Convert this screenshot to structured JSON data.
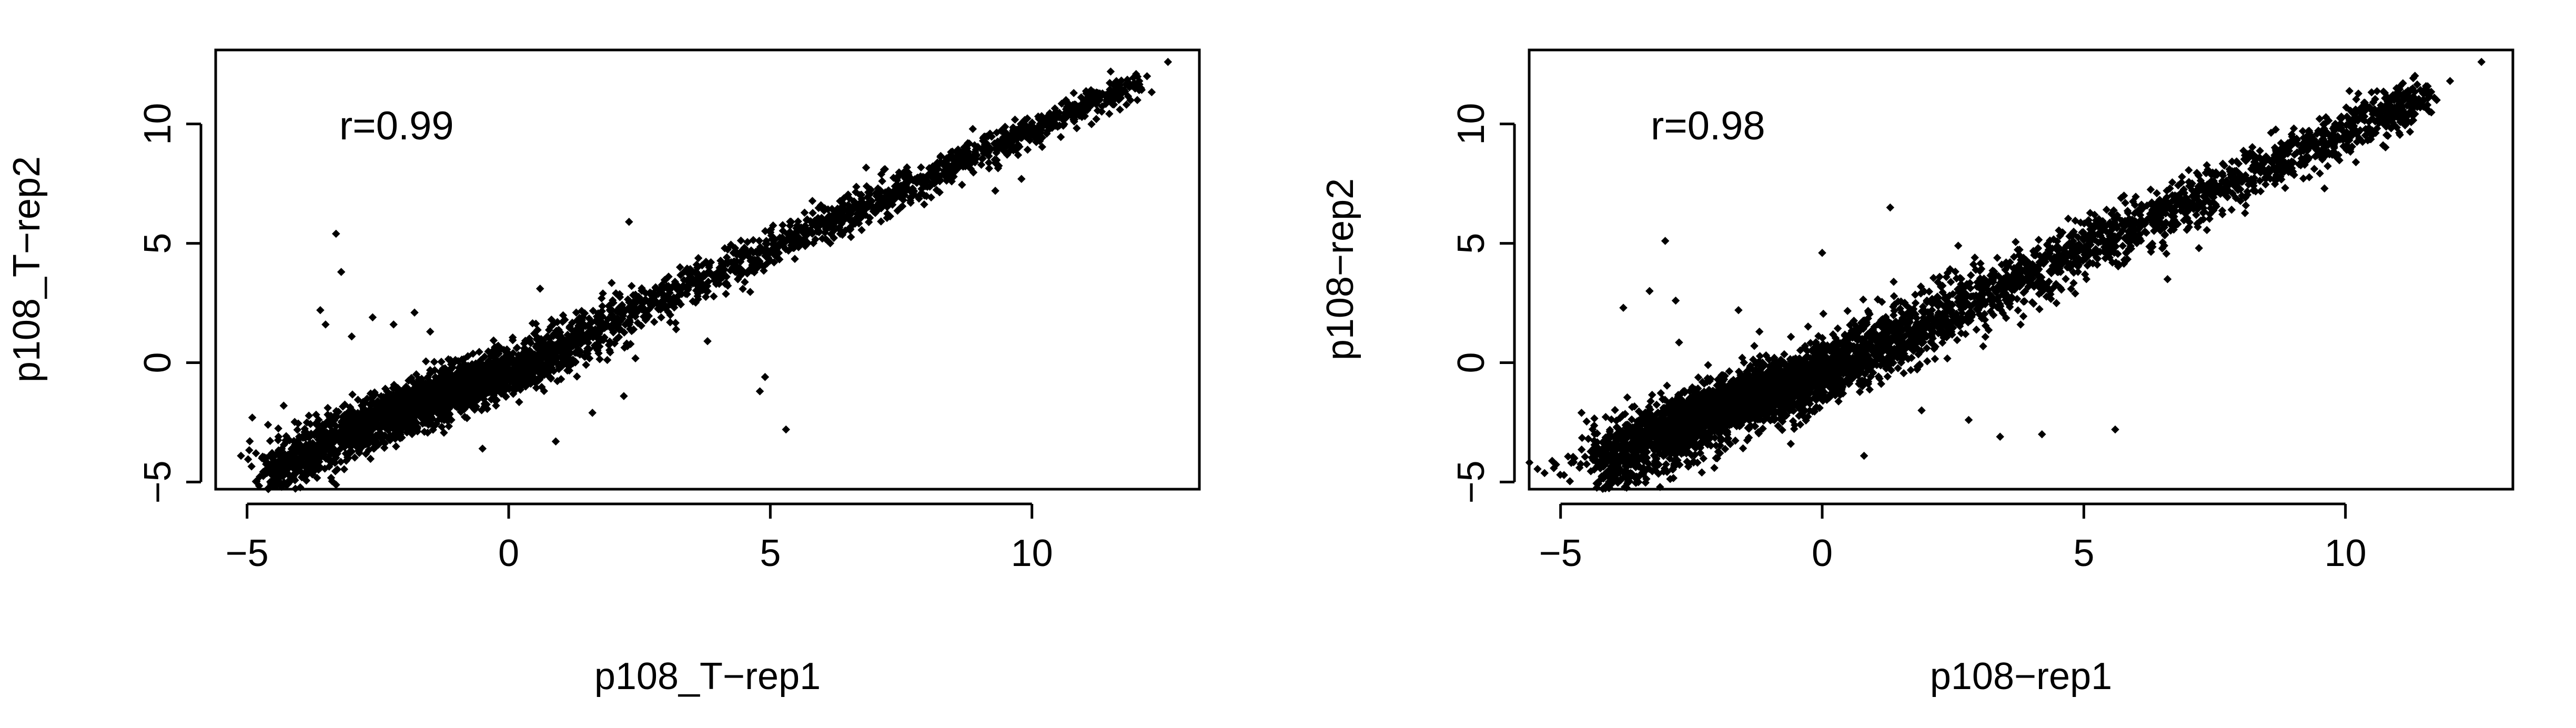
{
  "chart_data": [
    {
      "type": "scatter",
      "xlabel": "p108_T−rep1",
      "ylabel": "p108_T−rep2",
      "annotation": "r=0.99",
      "xlim": [
        -5.6,
        13.2
      ],
      "ylim": [
        -5.3,
        13.1
      ],
      "xticks": [
        -5,
        0,
        5,
        10
      ],
      "xtick_labels": [
        "−5",
        "0",
        "5",
        "10"
      ],
      "yticks": [
        -5,
        0,
        5,
        10
      ],
      "ytick_labels": [
        "−5",
        "0",
        "5",
        "10"
      ],
      "grid": false,
      "legend": "none",
      "point_color": "#000000",
      "points": [
        [
          -3.6,
          2.2
        ],
        [
          -3.3,
          5.4
        ],
        [
          -3.2,
          3.8
        ],
        [
          -3.5,
          1.6
        ],
        [
          -3.0,
          1.1
        ],
        [
          -2.6,
          1.9
        ],
        [
          -2.2,
          1.6
        ],
        [
          -1.8,
          2.1
        ],
        [
          -1.5,
          1.3
        ],
        [
          -4.3,
          -1.8
        ],
        [
          -4.6,
          -2.6
        ],
        [
          -4.4,
          -3.1
        ],
        [
          -4.9,
          -2.3
        ],
        [
          -4.2,
          -4.4
        ],
        [
          -3.8,
          -3.6
        ],
        [
          2.3,
          5.9
        ],
        [
          1.8,
          2.9
        ],
        [
          0.6,
          3.1
        ],
        [
          4.9,
          -0.6
        ],
        [
          4.8,
          -1.2
        ],
        [
          5.3,
          -2.8
        ],
        [
          9.3,
          7.2
        ],
        [
          9.8,
          7.7
        ],
        [
          10.8,
          10.2
        ],
        [
          11.5,
          11.0
        ],
        [
          12.2,
          12.0
        ],
        [
          12.6,
          12.6
        ],
        [
          2.2,
          -1.4
        ],
        [
          1.6,
          -2.1
        ],
        [
          0.9,
          -3.3
        ],
        [
          -0.5,
          -3.6
        ],
        [
          3.2,
          1.4
        ],
        [
          3.8,
          0.9
        ]
      ],
      "trend": {
        "slope": 0.99,
        "intercept": -0.15,
        "x_range": [
          -4.6,
          12.0
        ],
        "spread": 0.55,
        "n": 2400
      },
      "cluster": {
        "x_center": -1.2,
        "y_center": -1.3,
        "x_sd": 1.3,
        "y_sd": 1.1,
        "n": 1400
      }
    },
    {
      "type": "scatter",
      "xlabel": "p108−rep1",
      "ylabel": "p108−rep2",
      "annotation": "r=0.98",
      "xlim": [
        -5.6,
        13.2
      ],
      "ylim": [
        -5.3,
        13.1
      ],
      "xticks": [
        -5,
        0,
        5,
        10
      ],
      "xtick_labels": [
        "−5",
        "0",
        "5",
        "10"
      ],
      "yticks": [
        -5,
        0,
        5,
        10
      ],
      "ytick_labels": [
        "−5",
        "0",
        "5",
        "10"
      ],
      "grid": false,
      "legend": "none",
      "point_color": "#000000",
      "points": [
        [
          -3.0,
          5.1
        ],
        [
          -3.8,
          2.3
        ],
        [
          -4.6,
          -2.1
        ],
        [
          -4.2,
          -3.6
        ],
        [
          -3.9,
          -4.2
        ],
        [
          -3.3,
          3.0
        ],
        [
          -2.8,
          2.6
        ],
        [
          -1.6,
          2.2
        ],
        [
          -1.2,
          1.3
        ],
        [
          0.0,
          4.6
        ],
        [
          1.3,
          6.5
        ],
        [
          2.6,
          4.9
        ],
        [
          3.4,
          -3.1
        ],
        [
          4.2,
          -3.0
        ],
        [
          5.6,
          -2.8
        ],
        [
          2.8,
          -2.4
        ],
        [
          1.9,
          -2.0
        ],
        [
          11.2,
          10.1
        ],
        [
          12.0,
          11.8
        ],
        [
          12.6,
          12.6
        ],
        [
          11.7,
          11.1
        ],
        [
          10.2,
          8.4
        ],
        [
          9.6,
          7.3
        ],
        [
          6.6,
          3.5
        ],
        [
          7.2,
          4.8
        ],
        [
          -2.3,
          -4.6
        ],
        [
          0.8,
          -3.9
        ],
        [
          -0.6,
          -3.4
        ]
      ],
      "trend": {
        "slope": 0.99,
        "intercept": -0.2,
        "x_range": [
          -4.2,
          11.6
        ],
        "spread": 0.85,
        "n": 3000
      },
      "cluster": {
        "x_center": -1.3,
        "y_center": -1.4,
        "x_sd": 1.4,
        "y_sd": 1.2,
        "n": 1800
      }
    }
  ]
}
